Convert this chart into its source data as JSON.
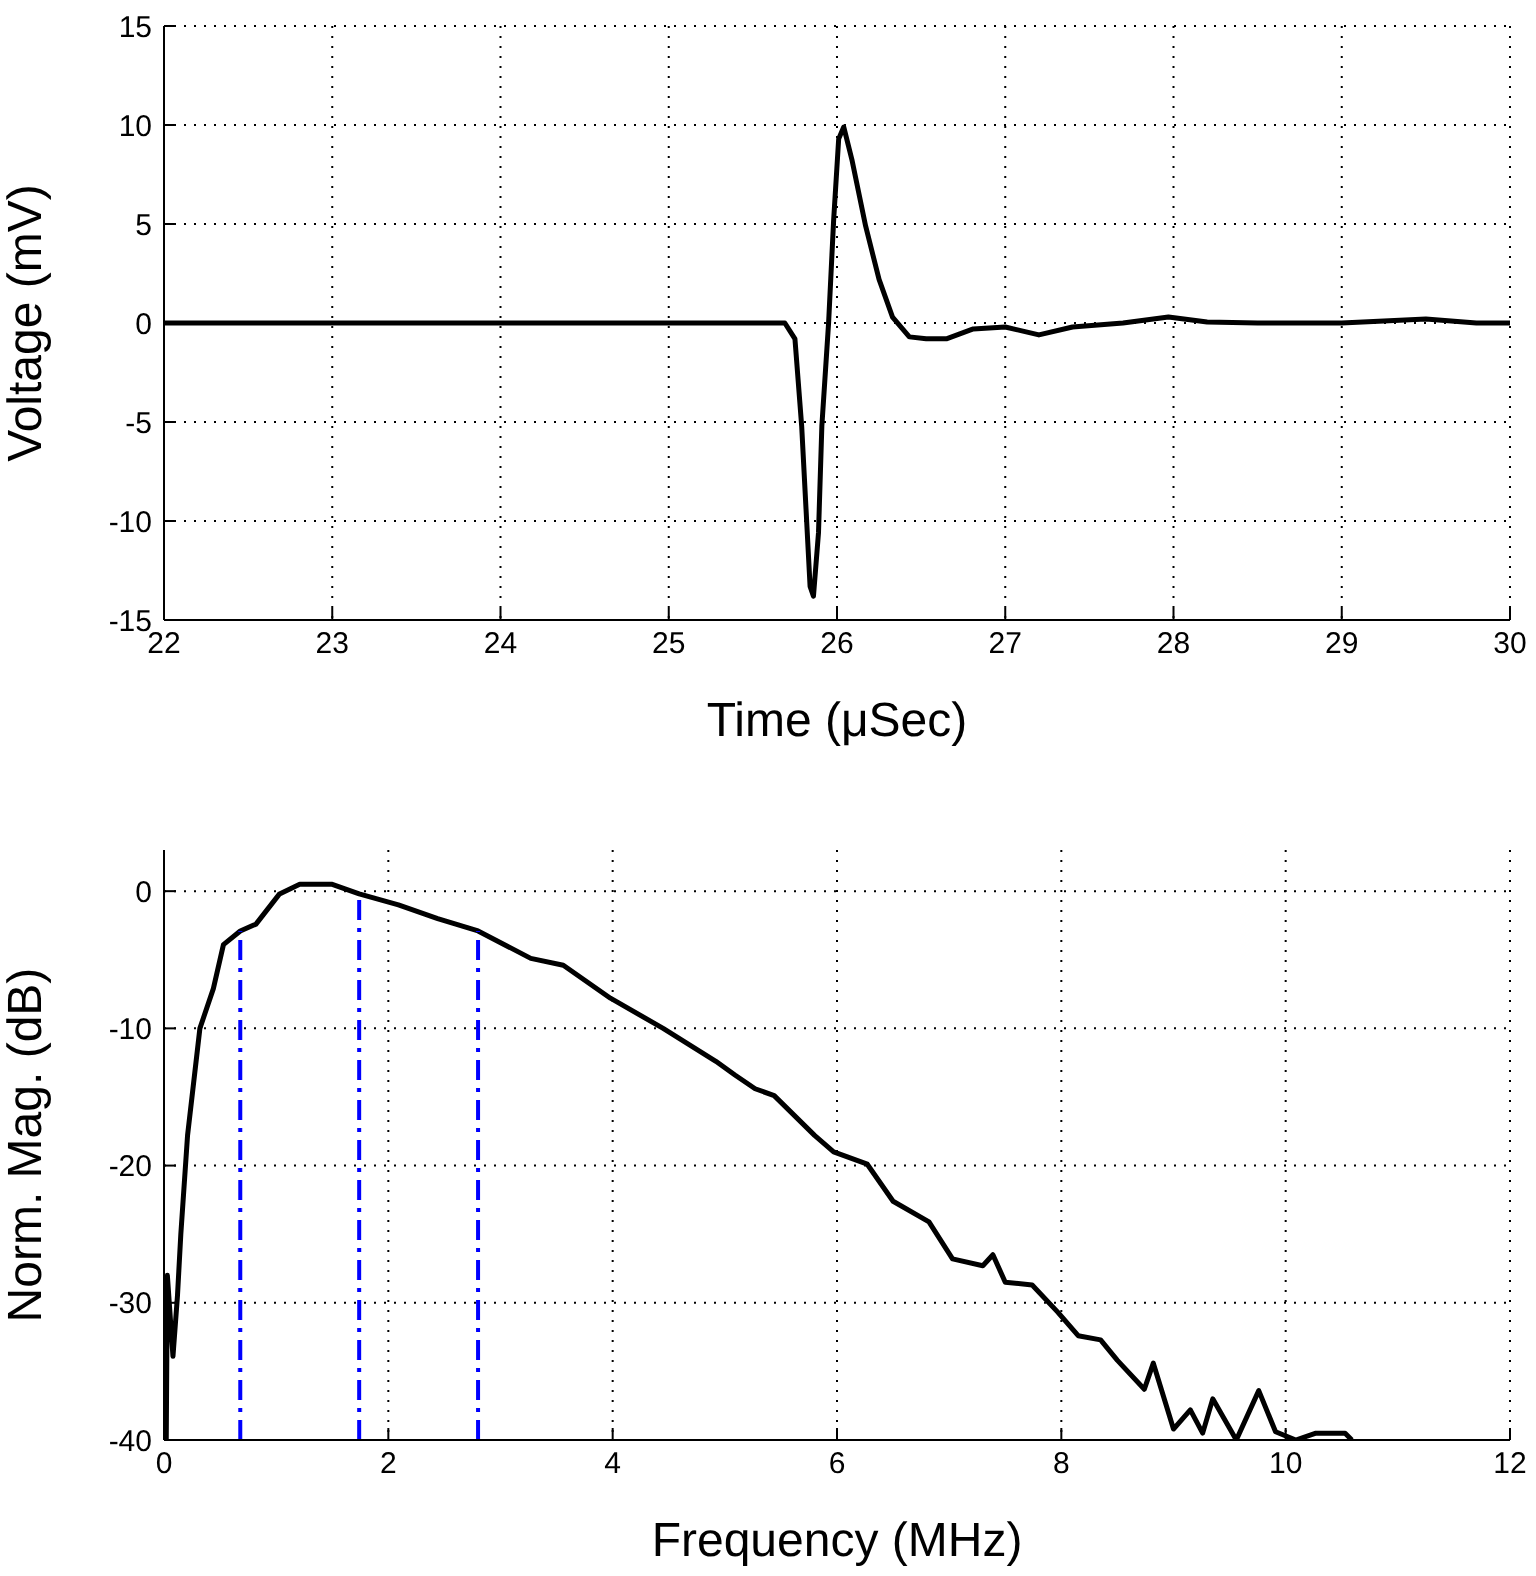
{
  "chart_data": [
    {
      "type": "line",
      "xlabel": "Time (μSec)",
      "ylabel": "Voltage (mV)",
      "xlim": [
        22,
        30
      ],
      "xticks": [
        22,
        23,
        24,
        25,
        26,
        27,
        28,
        29,
        30
      ],
      "ylim": [
        -15,
        15
      ],
      "yticks": [
        -15,
        -10,
        -5,
        0,
        5,
        10,
        15
      ],
      "grid": true,
      "series": [
        {
          "color": "#000000",
          "x": [
            22,
            23,
            24,
            25,
            25.5,
            25.69,
            25.75,
            25.79,
            25.84,
            25.86,
            25.89,
            25.91,
            25.95,
            25.98,
            26.01,
            26.04,
            26.09,
            26.17,
            26.25,
            26.33,
            26.43,
            26.53,
            26.65,
            26.81,
            27.0,
            27.2,
            27.4,
            27.7,
            27.97,
            28.2,
            28.5,
            29,
            29.5,
            29.8,
            30
          ],
          "values": [
            0,
            0,
            0,
            0,
            0,
            0,
            -0.8,
            -5.2,
            -13.3,
            -13.8,
            -10.6,
            -5.2,
            0,
            5.2,
            9.3,
            9.9,
            8.2,
            4.9,
            2.2,
            0.3,
            -0.7,
            -0.8,
            -0.8,
            -0.3,
            -0.2,
            -0.6,
            -0.2,
            0,
            0.3,
            0.05,
            0,
            0,
            0.2,
            0,
            0
          ]
        }
      ]
    },
    {
      "type": "line",
      "xlabel": "Frequency (MHz)",
      "ylabel": "Norm. Mag. (dB)",
      "xlim": [
        0,
        12
      ],
      "xticks": [
        0,
        2,
        4,
        6,
        8,
        10,
        12
      ],
      "ylim": [
        -40,
        3
      ],
      "yticks": [
        -40,
        -30,
        -20,
        -10,
        0
      ],
      "grid": true,
      "series": [
        {
          "color": "#000000",
          "x": [
            0.02,
            0.03,
            0.08,
            0.12,
            0.15,
            0.21,
            0.32,
            0.44,
            0.53,
            0.68,
            0.82,
            1.03,
            1.21,
            1.5,
            1.74,
            2.09,
            2.44,
            2.8,
            3.27,
            3.56,
            3.98,
            4.45,
            4.92,
            5.09,
            5.27,
            5.44,
            5.8,
            5.97,
            6.27,
            6.5,
            6.82,
            7.03,
            7.3,
            7.39,
            7.5,
            7.74,
            7.97,
            8.15,
            8.35,
            8.5,
            8.74,
            8.82,
            9.0,
            9.15,
            9.26,
            9.35,
            9.56,
            9.76,
            9.91,
            10.09,
            10.27,
            10.53,
            10.59
          ],
          "values": [
            -40,
            -28,
            -33.9,
            -29.5,
            -25,
            -17.8,
            -10,
            -7.1,
            -3.9,
            -2.9,
            -2.4,
            -0.2,
            0.5,
            0.5,
            -0.2,
            -1,
            -2,
            -2.9,
            -4.9,
            -5.4,
            -7.8,
            -10,
            -12.4,
            -13.4,
            -14.4,
            -14.9,
            -17.8,
            -19,
            -19.9,
            -22.6,
            -24.1,
            -26.8,
            -27.3,
            -26.5,
            -28.5,
            -28.7,
            -30.7,
            -32.4,
            -32.7,
            -34.2,
            -36.3,
            -34.4,
            -39.2,
            -37.8,
            -39.5,
            -37,
            -40,
            -36.4,
            -39.4,
            -40,
            -39.5,
            -39.5,
            -40
          ]
        },
        {
          "color": "#0000ff",
          "line_style": "dashed",
          "x": [
            0.68,
            0.68
          ],
          "values": [
            -40,
            -2.9
          ]
        },
        {
          "color": "#0000ff",
          "line_style": "dashed",
          "x": [
            1.74,
            1.74
          ],
          "values": [
            -40,
            -0.2
          ]
        },
        {
          "color": "#0000ff",
          "line_style": "dashed",
          "x": [
            2.8,
            2.8
          ],
          "values": [
            -40,
            -2.9
          ]
        }
      ]
    }
  ]
}
